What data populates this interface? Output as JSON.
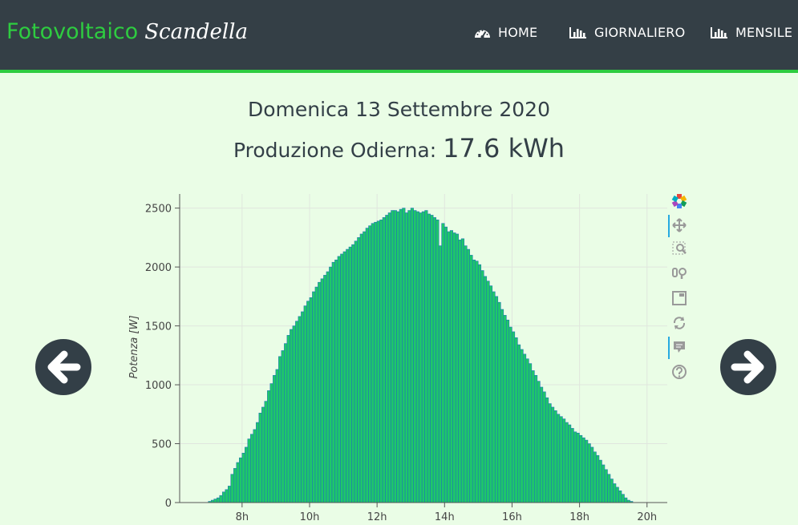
{
  "navbar": {
    "brand_main": "Fotovoltaico",
    "brand_script": "Scandella",
    "items": [
      {
        "label": "HOME",
        "icon": "dashboard-icon"
      },
      {
        "label": "GIORNALIERO",
        "icon": "bar-chart-icon"
      },
      {
        "label": "MENSILE",
        "icon": "bar-chart-icon"
      }
    ]
  },
  "header": {
    "date": "Domenica 13 Settembre 2020",
    "production_label": "Produzione Odierna:",
    "production_value": "17.6 kWh"
  },
  "colors": {
    "navbar_bg": "#343f46",
    "accent": "#2ecc40",
    "page_bg": "#eafde6",
    "bar_fill": "#1ec76a",
    "bar_stroke": "#1f77b4",
    "text_dark": "#333f47"
  },
  "toolbar": {
    "tools": [
      "bokeh-logo-icon",
      "pan-icon",
      "box-zoom-icon",
      "wheel-zoom-icon",
      "save-icon",
      "reset-icon",
      "hover-icon",
      "help-icon"
    ]
  },
  "chart_data": {
    "type": "bar",
    "xlabel": "",
    "ylabel": "Potenza [W]",
    "xlim": [
      6.15,
      20.6
    ],
    "ylim": [
      0,
      2620
    ],
    "x_ticks": [
      8,
      10,
      12,
      14,
      16,
      18,
      20
    ],
    "x_tick_labels": [
      "8h",
      "10h",
      "12h",
      "14h",
      "16h",
      "18h",
      "20h"
    ],
    "y_ticks": [
      0,
      500,
      1000,
      1500,
      2000,
      2500
    ],
    "y_tick_labels": [
      "0",
      "500",
      "1000",
      "1500",
      "2000",
      "2500"
    ],
    "grid": true,
    "bar_start_hour": 7.0,
    "bar_interval_hours": 0.0833,
    "values": [
      10,
      20,
      30,
      40,
      60,
      90,
      110,
      140,
      240,
      290,
      340,
      380,
      420,
      470,
      540,
      580,
      620,
      680,
      760,
      810,
      860,
      950,
      1010,
      1080,
      1130,
      1240,
      1290,
      1350,
      1420,
      1470,
      1500,
      1540,
      1580,
      1620,
      1670,
      1710,
      1740,
      1790,
      1830,
      1870,
      1900,
      1930,
      1960,
      2000,
      2040,
      2060,
      2090,
      2110,
      2130,
      2150,
      2170,
      2190,
      2220,
      2250,
      2280,
      2300,
      2330,
      2350,
      2370,
      2380,
      2390,
      2400,
      2420,
      2440,
      2460,
      2480,
      2480,
      2470,
      2490,
      2500,
      2460,
      2480,
      2500,
      2480,
      2470,
      2460,
      2470,
      2480,
      2450,
      2440,
      2420,
      2400,
      2180,
      2370,
      2340,
      2300,
      2310,
      2290,
      2280,
      2230,
      2240,
      2180,
      2150,
      2100,
      2060,
      2050,
      2020,
      1970,
      1920,
      1880,
      1840,
      1790,
      1750,
      1700,
      1640,
      1590,
      1550,
      1490,
      1450,
      1400,
      1340,
      1300,
      1260,
      1220,
      1180,
      1120,
      1080,
      1030,
      980,
      940,
      890,
      840,
      810,
      780,
      750,
      730,
      710,
      680,
      660,
      630,
      600,
      590,
      570,
      550,
      530,
      500,
      470,
      430,
      400,
      360,
      320,
      280,
      240,
      200,
      160,
      130,
      100,
      70,
      40,
      20,
      10
    ]
  }
}
